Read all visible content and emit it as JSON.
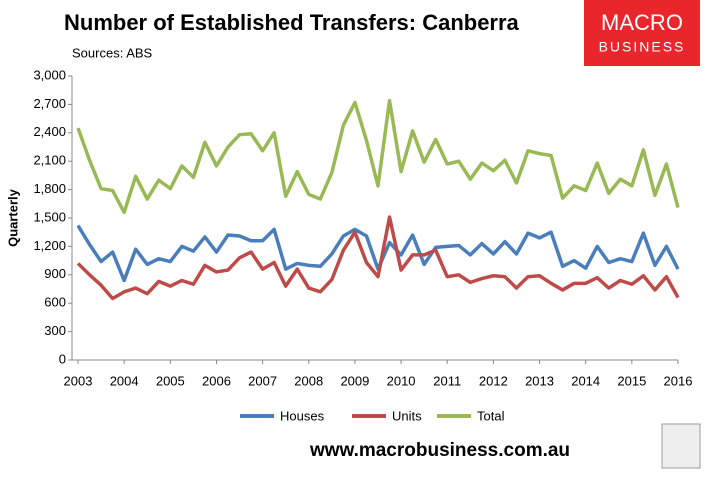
{
  "chart_data": {
    "type": "line",
    "title": "Number of Established Transfers: Canberra",
    "subtitle": "Sources: ABS",
    "y_label": "Quarterly",
    "categories": [
      "2003",
      null,
      null,
      null,
      "2004",
      null,
      null,
      null,
      "2005",
      null,
      null,
      null,
      "2006",
      null,
      null,
      null,
      "2007",
      null,
      null,
      null,
      "2008",
      null,
      null,
      null,
      "2009",
      null,
      null,
      null,
      "2010",
      null,
      null,
      null,
      "2011",
      null,
      null,
      null,
      "2012",
      null,
      null,
      null,
      "2013",
      null,
      null,
      null,
      "2014",
      null,
      null,
      null,
      "2015",
      null,
      null,
      null,
      "2016"
    ],
    "series": [
      {
        "name": "Houses",
        "color": "#4a7ebb",
        "values": [
          1420,
          1220,
          1040,
          1140,
          840,
          1170,
          1010,
          1070,
          1040,
          1200,
          1150,
          1300,
          1140,
          1320,
          1310,
          1260,
          1260,
          1380,
          960,
          1020,
          1000,
          990,
          1120,
          1310,
          1380,
          1310,
          960,
          1240,
          1110,
          1320,
          1010,
          1190,
          1200,
          1210,
          1110,
          1230,
          1120,
          1250,
          1120,
          1340,
          1290,
          1350,
          990,
          1050,
          970,
          1200,
          1030,
          1070,
          1040,
          1340,
          1000,
          1200,
          960
        ]
      },
      {
        "name": "Units",
        "color": "#be4b48",
        "values": [
          1020,
          900,
          790,
          650,
          720,
          760,
          700,
          830,
          780,
          840,
          800,
          1000,
          930,
          950,
          1080,
          1140,
          960,
          1030,
          780,
          960,
          760,
          720,
          850,
          1160,
          1350,
          1030,
          880,
          1510,
          950,
          1110,
          1110,
          1160,
          880,
          900,
          820,
          860,
          890,
          880,
          760,
          880,
          890,
          810,
          740,
          810,
          810,
          870,
          760,
          840,
          800,
          890,
          740,
          880,
          660
        ]
      },
      {
        "name": "Total",
        "color": "#98b954",
        "values": [
          2450,
          2110,
          1810,
          1790,
          1560,
          1940,
          1700,
          1900,
          1810,
          2050,
          1930,
          2300,
          2050,
          2250,
          2380,
          2390,
          2210,
          2400,
          1730,
          1990,
          1750,
          1700,
          1980,
          2480,
          2720,
          2320,
          1840,
          2740,
          1990,
          2420,
          2090,
          2330,
          2070,
          2100,
          1910,
          2080,
          2000,
          2110,
          1870,
          2210,
          2180,
          2160,
          1710,
          1840,
          1790,
          2080,
          1760,
          1910,
          1840,
          2220,
          1740,
          2070,
          1610
        ]
      }
    ],
    "ylim": [
      0,
      3000
    ],
    "yticks": [
      0,
      300,
      600,
      900,
      {
        "value": 1200,
        "label": "1,200"
      },
      {
        "value": 1500,
        "label": "1,500"
      },
      {
        "value": 1800,
        "label": "1,800"
      },
      {
        "value": 2100,
        "label": "2,100"
      },
      {
        "value": 2400,
        "label": "2,400"
      },
      {
        "value": 2700,
        "label": "2,700"
      },
      {
        "value": 3000,
        "label": "3,000"
      }
    ],
    "grid": false,
    "legend": "bottom"
  },
  "logo": {
    "line1": "MACRO",
    "line2": "BUSINESS"
  },
  "footer_url": "www.macrobusiness.com.au"
}
